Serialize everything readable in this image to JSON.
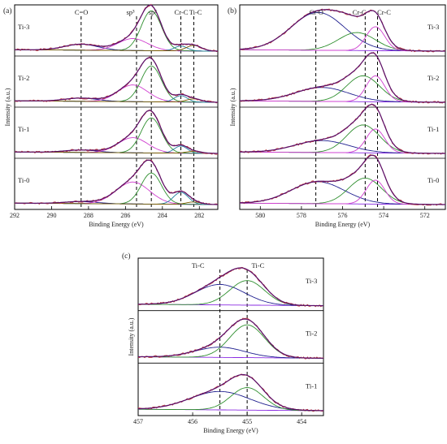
{
  "chart_data": [
    {
      "type": "line",
      "panel_label": "(a)",
      "xlabel": "Binding Energy (eV)",
      "ylabel": "Intensity (a.u.)",
      "xlim": [
        292,
        281
      ],
      "xticks": [
        292,
        290,
        288,
        286,
        284,
        282
      ],
      "stacks": [
        "Ti-3",
        "Ti-2",
        "Ti-1",
        "Ti-0"
      ],
      "reference_lines": [
        288.4,
        285.4,
        284.6,
        283.0,
        282.3
      ],
      "annotations": [
        {
          "text": "C=O",
          "x": 288.4,
          "stack": "Ti-3"
        },
        {
          "text": "sp³",
          "x": 285.6,
          "stack": "Ti-3"
        },
        {
          "text": "sp²",
          "x": 284.4,
          "stack": "Ti-3"
        },
        {
          "text": "Cr-C",
          "x": 283.0,
          "stack": "Ti-3"
        },
        {
          "text": "Ti-C",
          "x": 282.2,
          "stack": "Ti-3"
        }
      ],
      "component_colors": [
        "#c04040",
        "#1f1f8f",
        "#d040d0",
        "#2f8f2f",
        "#1f7f9f",
        "#7a5a00",
        "#8a2be2"
      ],
      "series": [
        {
          "stack": "Ti-3",
          "peaks": [
            {
              "center": 288.4,
              "height": 0.15,
              "width": 0.9
            },
            {
              "center": 285.6,
              "height": 0.3,
              "width": 0.8
            },
            {
              "center": 284.6,
              "height": 1.0,
              "width": 0.55
            },
            {
              "center": 283.0,
              "height": 0.12,
              "width": 0.35
            },
            {
              "center": 282.3,
              "height": 0.14,
              "width": 0.4
            }
          ]
        },
        {
          "stack": "Ti-2",
          "peaks": [
            {
              "center": 288.4,
              "height": 0.08,
              "width": 0.9
            },
            {
              "center": 285.6,
              "height": 0.42,
              "width": 0.8
            },
            {
              "center": 284.6,
              "height": 0.9,
              "width": 0.55
            },
            {
              "center": 283.0,
              "height": 0.16,
              "width": 0.35
            },
            {
              "center": 282.3,
              "height": 0.08,
              "width": 0.4
            }
          ]
        },
        {
          "stack": "Ti-1",
          "peaks": [
            {
              "center": 288.4,
              "height": 0.06,
              "width": 0.9
            },
            {
              "center": 285.6,
              "height": 0.38,
              "width": 0.8
            },
            {
              "center": 284.6,
              "height": 0.88,
              "width": 0.55
            },
            {
              "center": 283.0,
              "height": 0.18,
              "width": 0.35
            },
            {
              "center": 282.3,
              "height": 0.05,
              "width": 0.4
            }
          ]
        },
        {
          "stack": "Ti-0",
          "peaks": [
            {
              "center": 288.4,
              "height": 0.05,
              "width": 0.9
            },
            {
              "center": 285.6,
              "height": 0.55,
              "width": 0.9
            },
            {
              "center": 284.6,
              "height": 0.78,
              "width": 0.55
            },
            {
              "center": 283.0,
              "height": 0.3,
              "width": 0.4
            },
            {
              "center": 282.3,
              "height": 0.06,
              "width": 0.4
            }
          ]
        }
      ]
    },
    {
      "type": "line",
      "panel_label": "(b)",
      "xlabel": "Binding Energy (eV)",
      "ylabel": "Intensity (a.u.)",
      "xlim": [
        581,
        571
      ],
      "xticks": [
        580,
        578,
        576,
        574,
        572
      ],
      "stacks": [
        "Ti-3",
        "Ti-2",
        "Ti-1",
        "Ti-0"
      ],
      "reference_lines": [
        577.3,
        574.9,
        574.3
      ],
      "annotations": [
        {
          "text": "Cr-O",
          "x": 577.3,
          "stack": "Ti-3"
        },
        {
          "text": "Cr-C",
          "x": 575.2,
          "stack": "Ti-3"
        },
        {
          "text": "Cr-C",
          "x": 574.0,
          "stack": "Ti-3"
        }
      ],
      "component_colors": [
        "#c04040",
        "#1f1f8f",
        "#2f8f2f",
        "#d040d0",
        "#8a2be2"
      ],
      "series": [
        {
          "stack": "Ti-3",
          "peaks": [
            {
              "center": 577.2,
              "height": 0.95,
              "width": 1.3
            },
            {
              "center": 575.3,
              "height": 0.45,
              "width": 0.9
            },
            {
              "center": 574.4,
              "height": 0.6,
              "width": 0.45
            }
          ]
        },
        {
          "stack": "Ti-2",
          "peaks": [
            {
              "center": 577.0,
              "height": 0.35,
              "width": 1.3
            },
            {
              "center": 575.0,
              "height": 0.65,
              "width": 0.8
            },
            {
              "center": 574.4,
              "height": 0.65,
              "width": 0.45
            }
          ]
        },
        {
          "stack": "Ti-1",
          "peaks": [
            {
              "center": 577.0,
              "height": 0.3,
              "width": 1.3
            },
            {
              "center": 575.0,
              "height": 0.7,
              "width": 0.8
            },
            {
              "center": 574.4,
              "height": 0.6,
              "width": 0.45
            }
          ]
        },
        {
          "stack": "Ti-0",
          "peaks": [
            {
              "center": 577.2,
              "height": 0.55,
              "width": 1.3
            },
            {
              "center": 574.9,
              "height": 0.65,
              "width": 0.8
            },
            {
              "center": 574.4,
              "height": 0.6,
              "width": 0.45
            }
          ]
        }
      ]
    },
    {
      "type": "line",
      "panel_label": "(c)",
      "xlabel": "Binding Energy (eV)",
      "ylabel": "Intensity (a.u.)",
      "xlim": [
        457,
        453.6
      ],
      "xticks": [
        457,
        456,
        455,
        454
      ],
      "stacks": [
        "Ti-3",
        "Ti-2",
        "Ti-1"
      ],
      "reference_lines": [
        455.5,
        455.0
      ],
      "annotations": [
        {
          "text": "Ti-C",
          "x": 455.9,
          "stack": "Ti-3"
        },
        {
          "text": "Ti-C",
          "x": 454.8,
          "stack": "Ti-3"
        }
      ],
      "component_colors": [
        "#c04040",
        "#1f1f8f",
        "#2f8f2f",
        "#d040d0",
        "#8a2be2"
      ],
      "series": [
        {
          "stack": "Ti-3",
          "peaks": [
            {
              "center": 455.5,
              "height": 0.5,
              "width": 0.45
            },
            {
              "center": 455.0,
              "height": 0.6,
              "width": 0.32
            }
          ]
        },
        {
          "stack": "Ti-2",
          "peaks": [
            {
              "center": 455.5,
              "height": 0.25,
              "width": 0.45
            },
            {
              "center": 455.0,
              "height": 0.8,
              "width": 0.32
            }
          ]
        },
        {
          "stack": "Ti-1",
          "peaks": [
            {
              "center": 455.5,
              "height": 0.45,
              "width": 0.55
            },
            {
              "center": 455.0,
              "height": 0.55,
              "width": 0.3
            }
          ]
        }
      ]
    }
  ]
}
